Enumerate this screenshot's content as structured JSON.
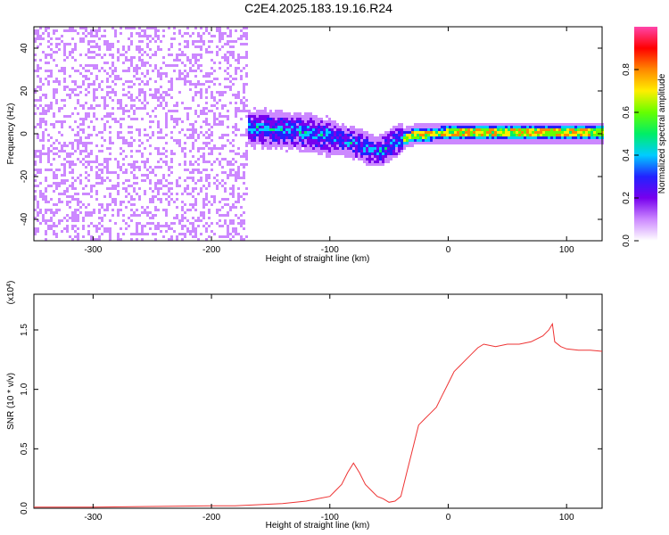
{
  "title": "C2E4.2025.183.19.16.R24",
  "colors": {
    "line": "#ee3333",
    "axis": "#000000",
    "background": "#ffffff"
  },
  "chart_data": [
    {
      "type": "heatmap",
      "title": "C2E4.2025.183.19.16.R24",
      "xlabel": "Height of straight line (km)",
      "ylabel": "Frequency (Hz)",
      "xlim": [
        -350,
        130
      ],
      "ylim": [
        -50,
        50
      ],
      "x_ticks": [
        -300,
        -200,
        -100,
        0,
        100
      ],
      "x_tick_labels": [
        "-300",
        "-200",
        "-100",
        "0",
        "100"
      ],
      "y_ticks": [
        -40,
        -20,
        0,
        20,
        40
      ],
      "y_tick_labels": [
        "-40",
        "-20",
        "0",
        "20",
        "40"
      ],
      "colorbar": {
        "label": "Normalized spectral amplitude",
        "range": [
          0,
          1
        ],
        "ticks": [
          0.0,
          0.2,
          0.4,
          0.6,
          0.8
        ],
        "tick_labels": [
          "0.0",
          "0.2",
          "0.4",
          "0.6",
          "0.8"
        ],
        "colormap": [
          "#ffffff",
          "#cc88ff",
          "#7700ee",
          "#2222ff",
          "#00ccff",
          "#00ee66",
          "#66ff00",
          "#ffee00",
          "#ff8800",
          "#ff0000",
          "#ff44aa"
        ]
      },
      "ridge_frequency": {
        "x": [
          -200,
          -160,
          -130,
          -100,
          -80,
          -60,
          -50,
          -40,
          -30,
          0,
          50,
          100,
          130
        ],
        "y": [
          5,
          3,
          2,
          -1,
          -4,
          -8,
          -5,
          -2,
          0,
          1,
          1,
          1,
          1
        ]
      }
    },
    {
      "type": "line",
      "xlabel": "Height of straight line (km)",
      "ylabel": "SNR (10 * v/v)",
      "y_scale_label": "(x10",
      "y_scale_exponent": "4",
      "xlim": [
        -350,
        130
      ],
      "ylim": [
        0,
        1.8
      ],
      "x_ticks": [
        -300,
        -200,
        -100,
        0,
        100
      ],
      "x_tick_labels": [
        "-300",
        "-200",
        "-100",
        "0",
        "100"
      ],
      "y_ticks": [
        0.0,
        0.5,
        1.0,
        1.5
      ],
      "y_tick_labels": [
        "0.0",
        "0.5",
        "1.0",
        "1.5"
      ],
      "series": [
        {
          "color": "#ee3333",
          "x": [
            -350,
            -300,
            -250,
            -200,
            -180,
            -160,
            -140,
            -120,
            -110,
            -100,
            -95,
            -90,
            -85,
            -80,
            -75,
            -70,
            -65,
            -60,
            -55,
            -50,
            -45,
            -40,
            -35,
            -30,
            -25,
            -20,
            -15,
            -10,
            -5,
            0,
            5,
            10,
            15,
            20,
            25,
            30,
            40,
            50,
            60,
            70,
            80,
            85,
            88,
            90,
            95,
            100,
            110,
            120,
            130
          ],
          "y": [
            0.01,
            0.01,
            0.015,
            0.02,
            0.02,
            0.03,
            0.04,
            0.06,
            0.08,
            0.1,
            0.15,
            0.2,
            0.3,
            0.38,
            0.3,
            0.2,
            0.15,
            0.1,
            0.08,
            0.05,
            0.06,
            0.1,
            0.3,
            0.5,
            0.7,
            0.75,
            0.8,
            0.85,
            0.95,
            1.05,
            1.15,
            1.2,
            1.25,
            1.3,
            1.35,
            1.38,
            1.36,
            1.38,
            1.38,
            1.4,
            1.45,
            1.5,
            1.55,
            1.4,
            1.36,
            1.34,
            1.33,
            1.33,
            1.32
          ]
        }
      ]
    }
  ]
}
